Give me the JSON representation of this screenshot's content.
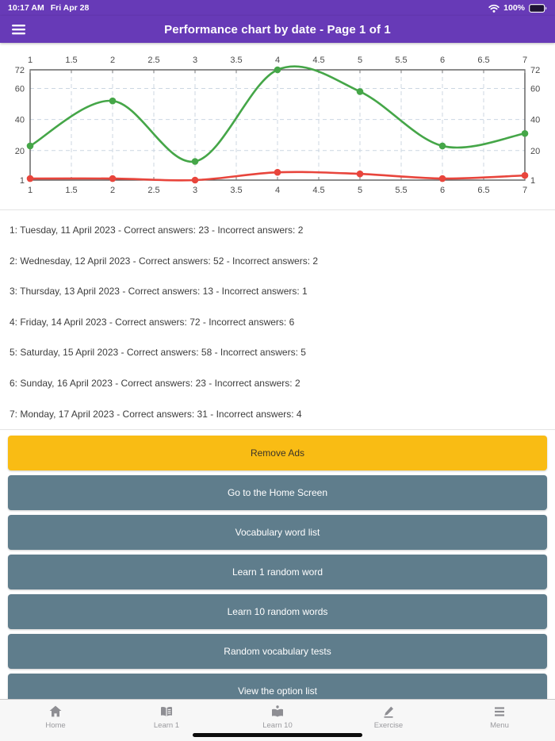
{
  "status_bar": {
    "time": "10:17 AM",
    "date": "Fri Apr 28",
    "battery": "100%"
  },
  "header": {
    "title": "Performance chart by date - Page 1 of 1"
  },
  "colors": {
    "header_purple": "#673ab7",
    "accent_button_yellow": "#f9bc14",
    "menu_button_slate": "#5f7d8c",
    "correct_line_green": "#45a648",
    "incorrect_line_red": "#e8453c",
    "grid_line": "#ccd7e2"
  },
  "chart_data": {
    "type": "line",
    "title": "Performance chart by date",
    "x": [
      1,
      2,
      3,
      4,
      5,
      6,
      7
    ],
    "series": [
      {
        "name": "Correct answers",
        "color": "#45a648",
        "values": [
          23,
          52,
          13,
          72,
          58,
          23,
          31
        ]
      },
      {
        "name": "Incorrect answers",
        "color": "#e8453c",
        "values": [
          2,
          2,
          1,
          6,
          5,
          2,
          4
        ]
      }
    ],
    "x_ticks": [
      1,
      1.5,
      2,
      2.5,
      3,
      3.5,
      4,
      4.5,
      5,
      5.5,
      6,
      6.5,
      7
    ],
    "y_ticks": [
      1,
      20,
      40,
      60,
      72
    ],
    "xlim": [
      1,
      7
    ],
    "ylim": [
      1,
      72
    ],
    "grid": true,
    "grid_style": "dashed",
    "grid_color": "#ccd7e2",
    "smooth": true,
    "legend": "none",
    "axis_labels": "mirrored top/bottom and left/right"
  },
  "performance_lines": [
    "1: Tuesday, 11 April 2023 - Correct answers: 23 - Incorrect answers: 2",
    "2: Wednesday, 12 April 2023 - Correct answers: 52 - Incorrect answers: 2",
    "3: Thursday, 13 April 2023 - Correct answers: 13 - Incorrect answers: 1",
    "4: Friday, 14 April 2023 - Correct answers: 72 - Incorrect answers: 6",
    "5: Saturday, 15 April 2023 - Correct answers: 58 - Incorrect answers: 5",
    "6: Sunday, 16 April 2023 - Correct answers: 23 - Incorrect answers: 2",
    "7: Monday, 17 April 2023 - Correct answers: 31 - Incorrect answers: 4"
  ],
  "menu_buttons": [
    {
      "label": "Remove Ads",
      "style": "accent"
    },
    {
      "label": "Go to the Home Screen",
      "style": "slate"
    },
    {
      "label": "Vocabulary word list",
      "style": "slate"
    },
    {
      "label": "Learn 1 random word",
      "style": "slate"
    },
    {
      "label": "Learn 10 random words",
      "style": "slate"
    },
    {
      "label": "Random vocabulary tests",
      "style": "slate"
    },
    {
      "label": "View the option list",
      "style": "slate"
    }
  ],
  "tab_bar": {
    "items": [
      {
        "label": "Home",
        "icon": "home-icon"
      },
      {
        "label": "Learn 1",
        "icon": "book-open-icon"
      },
      {
        "label": "Learn 10",
        "icon": "book-learn-icon"
      },
      {
        "label": "Exercise",
        "icon": "pencil-icon"
      },
      {
        "label": "Menu",
        "icon": "menu-icon"
      }
    ]
  }
}
